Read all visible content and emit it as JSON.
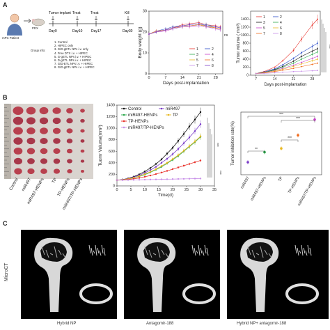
{
  "panelA": {
    "letter": "A",
    "patient_label": "mPC Patient",
    "pdx_label": "PDX",
    "timeline": {
      "events": [
        "Tumor implant",
        "Treat",
        "Treat",
        "Kill"
      ],
      "days": [
        "Day0",
        "Day10",
        "Day17",
        "Day30"
      ]
    },
    "group_info_label": "Group info:",
    "groups": [
      "1. Control",
      "2. HIPEC only",
      "3. G/D-gETL NPs i.v. only",
      "4. Free DTX i.v. + HIPEC",
      "5. G-gETL NPs i.v. + HIPEC",
      "6. D-gETL NPs i.v. + HIPEC",
      "7. G/D-ETL NPs i.v. + HIPEC",
      "8. G/D-gETL NPs i.v. + HIPEC"
    ]
  },
  "panelB": {
    "letter": "B",
    "photo_labels": [
      "Control",
      "miR497",
      "miR497-HENPs",
      "TP",
      "TP-HENPs",
      "miR497/TP-HENPs"
    ]
  },
  "panelC": {
    "letter": "C",
    "side_label": "MicroCT",
    "images": [
      "Hybrid NP",
      "Antagomir-188",
      "Hybrid NP+ antagomir-188"
    ]
  },
  "colors": {
    "red": "#e8322b",
    "blue": "#2b4cc8",
    "green": "#2aa84a",
    "magenta": "#c83cc8",
    "yellow": "#e8b820",
    "orange": "#f06a1a",
    "violet": "#c890e8",
    "black": "#111111",
    "purple": "#7a3cc8"
  },
  "chart_data": [
    {
      "id": "bodyweight",
      "type": "line",
      "title": "",
      "xlabel": "Days post-implantation",
      "ylabel": "Body weight (g)",
      "xlim": [
        0,
        31
      ],
      "ylim": [
        0,
        30
      ],
      "xticks": [
        0,
        7,
        14,
        21,
        28
      ],
      "yticks": [
        0,
        10,
        20,
        30
      ],
      "x": [
        0,
        3,
        7,
        10,
        14,
        17,
        21,
        24,
        28,
        30
      ],
      "series": [
        {
          "name": "1",
          "values": [
            19,
            20,
            21,
            22,
            23.5,
            24,
            24.5,
            23.5,
            23,
            22.5
          ]
        },
        {
          "name": "2",
          "values": [
            19,
            20.5,
            21.5,
            22.5,
            23,
            23.5,
            24,
            23.5,
            22.5,
            22
          ]
        },
        {
          "name": "3",
          "values": [
            19,
            20,
            21,
            21.5,
            22.5,
            23,
            23.5,
            23,
            22,
            21.5
          ]
        },
        {
          "name": "4",
          "values": [
            19,
            20,
            20.5,
            21.5,
            22.5,
            22.5,
            23,
            22.5,
            21.5,
            21
          ]
        },
        {
          "name": "5",
          "values": [
            19,
            20,
            21,
            22,
            23,
            23,
            23.5,
            23,
            22,
            21.5
          ]
        },
        {
          "name": "6",
          "values": [
            19,
            20.5,
            21,
            22,
            22.5,
            23,
            23.5,
            22.5,
            22,
            21.5
          ]
        },
        {
          "name": "7",
          "values": [
            19,
            20,
            21,
            21.5,
            22.5,
            23,
            23,
            22.5,
            21.5,
            21
          ]
        },
        {
          "name": "8",
          "values": [
            19,
            20,
            21,
            22,
            23,
            23.5,
            24,
            23,
            22.5,
            22
          ]
        }
      ],
      "annotation": "ns"
    },
    {
      "id": "tumorvolume_A",
      "type": "line",
      "title": "",
      "xlabel": "Days post-implantation",
      "ylabel": "Tumor volume ( mm³)",
      "xlim": [
        5,
        31
      ],
      "ylim": [
        0,
        1600
      ],
      "xticks": [
        7,
        14,
        21,
        28
      ],
      "yticks": [
        0,
        200,
        400,
        600,
        800,
        1000,
        1200,
        1400
      ],
      "x": [
        7,
        10,
        14,
        17,
        21,
        24,
        28,
        30
      ],
      "series": [
        {
          "name": "1",
          "values": [
            40,
            90,
            200,
            360,
            620,
            900,
            1250,
            1400
          ]
        },
        {
          "name": "2",
          "values": [
            40,
            80,
            160,
            260,
            420,
            560,
            720,
            800
          ]
        },
        {
          "name": "3",
          "values": [
            40,
            70,
            140,
            220,
            350,
            470,
            600,
            660
          ]
        },
        {
          "name": "4",
          "values": [
            40,
            70,
            130,
            200,
            300,
            400,
            520,
            580
          ]
        },
        {
          "name": "5",
          "values": [
            40,
            65,
            115,
            170,
            250,
            320,
            420,
            470
          ]
        },
        {
          "name": "6",
          "values": [
            40,
            60,
            105,
            150,
            220,
            280,
            360,
            400
          ]
        },
        {
          "name": "7",
          "values": [
            40,
            55,
            90,
            125,
            170,
            215,
            270,
            300
          ]
        },
        {
          "name": "8",
          "values": [
            40,
            45,
            60,
            75,
            90,
            100,
            110,
            120
          ]
        }
      ],
      "annotation": "***"
    },
    {
      "id": "tumorvolume_B",
      "type": "line",
      "title": "",
      "xlabel": "Time(d)",
      "ylabel": "Tuomr Volume(mm³)",
      "xlim": [
        0,
        35
      ],
      "ylim": [
        0,
        1400
      ],
      "xticks": [
        0,
        5,
        10,
        15,
        20,
        25,
        30,
        35
      ],
      "yticks": [
        0,
        200,
        400,
        600,
        800,
        1000,
        1200,
        1400
      ],
      "x": [
        0,
        2,
        4,
        6,
        8,
        10,
        12,
        14,
        16,
        18,
        20,
        22,
        24,
        26,
        28,
        30
      ],
      "series": [
        {
          "name": "Control",
          "values": [
            100,
            110,
            130,
            160,
            200,
            250,
            310,
            380,
            460,
            560,
            660,
            780,
            900,
            1030,
            1150,
            1280
          ]
        },
        {
          "name": "miR497",
          "values": [
            100,
            108,
            125,
            150,
            185,
            225,
            275,
            330,
            400,
            470,
            550,
            640,
            740,
            840,
            950,
            1070
          ]
        },
        {
          "name": "miR497-HENPs",
          "values": [
            100,
            105,
            118,
            138,
            165,
            195,
            235,
            280,
            330,
            390,
            450,
            520,
            600,
            680,
            760,
            850
          ]
        },
        {
          "name": "TP",
          "values": [
            100,
            106,
            120,
            140,
            170,
            205,
            245,
            290,
            345,
            400,
            465,
            535,
            610,
            690,
            770,
            860
          ]
        },
        {
          "name": "TP-HENPs",
          "values": [
            100,
            103,
            110,
            122,
            138,
            158,
            180,
            205,
            232,
            260,
            290,
            320,
            350,
            380,
            410,
            440
          ]
        },
        {
          "name": "miR497/TP-HENPs",
          "values": [
            100,
            100,
            102,
            104,
            106,
            108,
            110,
            112,
            114,
            116,
            118,
            120,
            122,
            124,
            126,
            128
          ]
        }
      ],
      "annotation": "***"
    },
    {
      "id": "inhibition",
      "type": "scatter",
      "title": "",
      "ylabel": "Tumor inhibition rate(%)",
      "categories": [
        "miR497",
        "miR497-HENPs",
        "TP",
        "TP-HENPs",
        "miR497/TP-HENPs"
      ],
      "values": [
        20,
        36,
        42,
        63,
        88
      ],
      "ylim": [
        0,
        100
      ],
      "annotations": [
        "**",
        "***",
        "***",
        "***"
      ]
    }
  ]
}
